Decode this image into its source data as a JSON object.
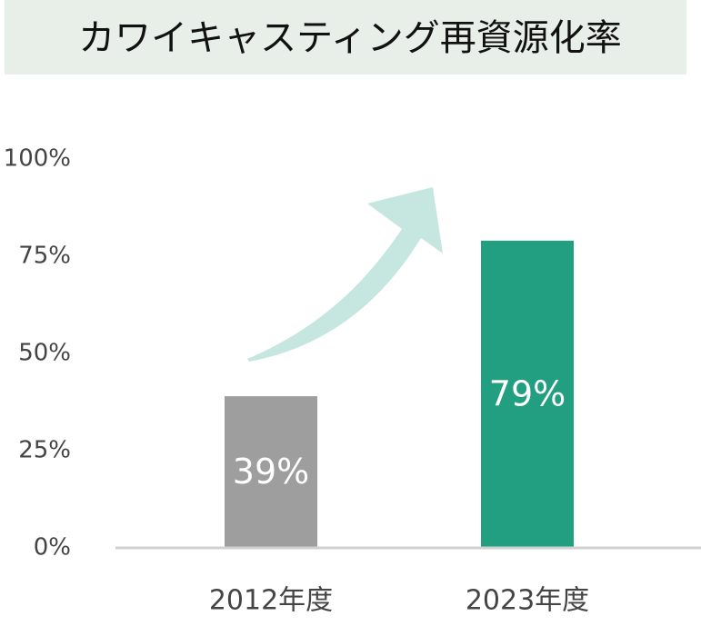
{
  "chart_data": {
    "type": "bar",
    "title": "カワイキャスティング再資源化率",
    "categories": [
      "2012年度",
      "2023年度"
    ],
    "values": [
      39,
      79
    ],
    "value_labels": [
      "39%",
      "79%"
    ],
    "colors": [
      "#9e9e9e",
      "#229e80"
    ],
    "ylim": [
      0,
      100
    ],
    "yticks": [
      {
        "value": 0,
        "label": "0%"
      },
      {
        "value": 25,
        "label": "25%"
      },
      {
        "value": 50,
        "label": "50%"
      },
      {
        "value": 75,
        "label": "75%"
      },
      {
        "value": 100,
        "label": "100%"
      }
    ],
    "grid": false
  }
}
